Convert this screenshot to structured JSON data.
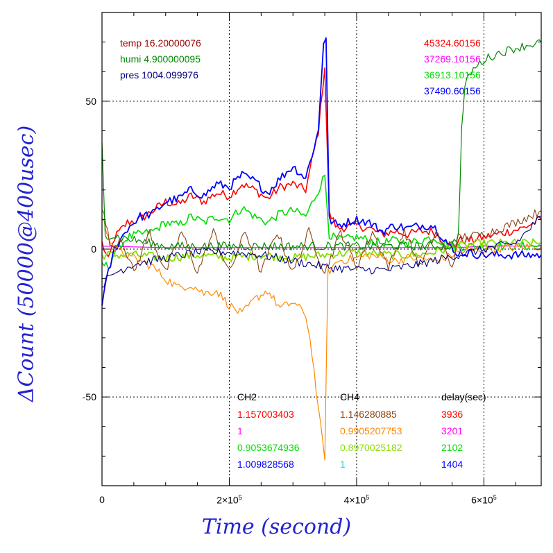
{
  "chart_data": {
    "type": "line",
    "xlabel": "Time (second)",
    "ylabel": "ΔCount (50000@400usec)",
    "xlim": [
      0,
      690000
    ],
    "ylim": [
      -80,
      80
    ],
    "x_ticks": [
      {
        "value": 0,
        "label": "0"
      },
      {
        "value": 200000,
        "mantissa": "2×10",
        "exponent": "5"
      },
      {
        "value": 400000,
        "mantissa": "4×10",
        "exponent": "5"
      },
      {
        "value": 600000,
        "mantissa": "6×10",
        "exponent": "5"
      }
    ],
    "y_ticks": [
      {
        "value": 50,
        "label": "50"
      },
      {
        "value": 0,
        "label": "0"
      },
      {
        "value": -50,
        "label": "-50"
      }
    ],
    "grid": true,
    "env_labels": [
      {
        "text": "temp 16.20000076",
        "color": "#990000"
      },
      {
        "text": "humi 4.900000095",
        "color": "#008800"
      },
      {
        "text": "pres 1004.099976",
        "color": "#000080"
      }
    ],
    "top_right_labels": [
      {
        "text": "45324.60156",
        "color": "#ff0000"
      },
      {
        "text": "37269.10156",
        "color": "#ff00ff"
      },
      {
        "text": "36913.10156",
        "color": "#00dd00"
      },
      {
        "text": "37490.60156",
        "color": "#0000ff"
      }
    ],
    "table": {
      "headers": [
        "CH2",
        "CH4",
        "delay(sec)"
      ],
      "rows": [
        {
          "ch2": "1.157003403",
          "ch4": "1.146280885",
          "delay": "3936",
          "c1": "#ff0000",
          "c2": "#8b4513",
          "c3": "#ff0000"
        },
        {
          "ch2": "1",
          "ch4": "0.9905207753",
          "delay": "3201",
          "c1": "#ff00ff",
          "c2": "#ff8800",
          "c3": "#ff00ff"
        },
        {
          "ch2": "0.9053674936",
          "ch4": "0.8970025182",
          "delay": "2102",
          "c1": "#00dd00",
          "c2": "#88dd00",
          "c3": "#00dd00"
        },
        {
          "ch2": "1.009828568",
          "ch4": "1",
          "delay": "1404",
          "c1": "#0000ff",
          "c2": "#00dddd",
          "c3": "#0000ff"
        }
      ]
    },
    "series": [
      {
        "color": "#ff0000",
        "width": 1.6,
        "points": [
          [
            0,
            2
          ],
          [
            10000,
            -4
          ],
          [
            20000,
            4
          ],
          [
            40000,
            9
          ],
          [
            60000,
            10
          ],
          [
            80000,
            13
          ],
          [
            100000,
            16
          ],
          [
            120000,
            15
          ],
          [
            140000,
            18
          ],
          [
            160000,
            16
          ],
          [
            180000,
            19
          ],
          [
            200000,
            18
          ],
          [
            220000,
            22
          ],
          [
            240000,
            20
          ],
          [
            260000,
            17
          ],
          [
            280000,
            21
          ],
          [
            300000,
            22
          ],
          [
            320000,
            20
          ],
          [
            340000,
            40
          ],
          [
            350000,
            62
          ],
          [
            357000,
            12
          ],
          [
            370000,
            7
          ],
          [
            400000,
            8
          ],
          [
            420000,
            7
          ],
          [
            440000,
            5
          ],
          [
            460000,
            6
          ],
          [
            480000,
            5
          ],
          [
            500000,
            6
          ],
          [
            520000,
            6
          ],
          [
            540000,
            2
          ],
          [
            555000,
            1
          ],
          [
            560000,
            3
          ],
          [
            580000,
            3
          ],
          [
            600000,
            4
          ],
          [
            620000,
            5
          ],
          [
            640000,
            6
          ],
          [
            660000,
            7
          ],
          [
            690000,
            10
          ]
        ]
      },
      {
        "color": "#ff00ff",
        "width": 1.2,
        "points": [
          [
            0,
            1
          ],
          [
            100000,
            0.5
          ],
          [
            200000,
            0.5
          ],
          [
            300000,
            0.5
          ],
          [
            400000,
            0.5
          ],
          [
            500000,
            0.5
          ],
          [
            560000,
            0.5
          ],
          [
            600000,
            1
          ],
          [
            690000,
            1
          ]
        ]
      },
      {
        "color": "#00dd00",
        "width": 1.6,
        "points": [
          [
            0,
            -5
          ],
          [
            10000,
            -6
          ],
          [
            20000,
            -1
          ],
          [
            40000,
            4
          ],
          [
            60000,
            5
          ],
          [
            80000,
            6
          ],
          [
            100000,
            9
          ],
          [
            120000,
            8
          ],
          [
            140000,
            11
          ],
          [
            160000,
            9
          ],
          [
            180000,
            11
          ],
          [
            200000,
            10
          ],
          [
            220000,
            14
          ],
          [
            240000,
            11
          ],
          [
            260000,
            9
          ],
          [
            280000,
            12
          ],
          [
            300000,
            13
          ],
          [
            320000,
            11
          ],
          [
            340000,
            20
          ],
          [
            350000,
            25
          ],
          [
            357000,
            5
          ],
          [
            370000,
            3
          ],
          [
            400000,
            4
          ],
          [
            420000,
            3
          ],
          [
            440000,
            2
          ],
          [
            460000,
            3
          ],
          [
            480000,
            2
          ],
          [
            500000,
            3
          ],
          [
            520000,
            4
          ],
          [
            540000,
            2
          ],
          [
            560000,
            1
          ],
          [
            600000,
            1
          ],
          [
            690000,
            1
          ]
        ]
      },
      {
        "color": "#88dd00",
        "width": 1.8,
        "points": [
          [
            0,
            -2
          ],
          [
            20000,
            -2
          ],
          [
            50000,
            -2
          ],
          [
            100000,
            -3
          ],
          [
            150000,
            -2
          ],
          [
            200000,
            -3
          ],
          [
            250000,
            -2
          ],
          [
            300000,
            -3
          ],
          [
            350000,
            -2
          ],
          [
            400000,
            -1
          ],
          [
            450000,
            -2
          ],
          [
            500000,
            -2
          ],
          [
            560000,
            1
          ],
          [
            600000,
            2
          ],
          [
            690000,
            2
          ]
        ]
      },
      {
        "color": "#0000ff",
        "width": 1.8,
        "points": [
          [
            0,
            -18
          ],
          [
            10000,
            -8
          ],
          [
            20000,
            0
          ],
          [
            40000,
            7
          ],
          [
            60000,
            11
          ],
          [
            80000,
            12
          ],
          [
            100000,
            16
          ],
          [
            120000,
            17
          ],
          [
            140000,
            20
          ],
          [
            160000,
            18
          ],
          [
            180000,
            22
          ],
          [
            200000,
            21
          ],
          [
            220000,
            25
          ],
          [
            240000,
            23
          ],
          [
            260000,
            19
          ],
          [
            280000,
            24
          ],
          [
            300000,
            28
          ],
          [
            320000,
            24
          ],
          [
            340000,
            40
          ],
          [
            348000,
            70
          ],
          [
            352000,
            72
          ],
          [
            357000,
            10
          ],
          [
            370000,
            8
          ],
          [
            400000,
            10
          ],
          [
            420000,
            9
          ],
          [
            440000,
            6
          ],
          [
            460000,
            8
          ],
          [
            480000,
            7
          ],
          [
            500000,
            8
          ],
          [
            520000,
            8
          ],
          [
            540000,
            3
          ],
          [
            555000,
            -2
          ],
          [
            560000,
            -1
          ],
          [
            600000,
            -2
          ],
          [
            650000,
            -2
          ],
          [
            690000,
            -2
          ]
        ]
      },
      {
        "color": "#ff8800",
        "width": 1.2,
        "points": [
          [
            0,
            10
          ],
          [
            20000,
            0
          ],
          [
            50000,
            -3
          ],
          [
            80000,
            -6
          ],
          [
            100000,
            -10
          ],
          [
            120000,
            -13
          ],
          [
            140000,
            -12
          ],
          [
            160000,
            -15
          ],
          [
            180000,
            -14
          ],
          [
            200000,
            -19
          ],
          [
            220000,
            -22
          ],
          [
            240000,
            -17
          ],
          [
            260000,
            -14
          ],
          [
            280000,
            -20
          ],
          [
            300000,
            -18
          ],
          [
            320000,
            -22
          ],
          [
            330000,
            -35
          ],
          [
            340000,
            -55
          ],
          [
            350000,
            -70
          ],
          [
            355000,
            -8
          ],
          [
            370000,
            -4
          ],
          [
            400000,
            -3
          ],
          [
            420000,
            -2
          ],
          [
            440000,
            -3
          ],
          [
            460000,
            -4
          ],
          [
            480000,
            -3
          ],
          [
            500000,
            -3
          ],
          [
            520000,
            -4
          ],
          [
            540000,
            -3
          ],
          [
            560000,
            -1
          ],
          [
            600000,
            0
          ],
          [
            690000,
            1
          ]
        ]
      },
      {
        "color": "#8b4513",
        "width": 1.1,
        "points": [
          [
            0,
            14
          ],
          [
            15000,
            0
          ],
          [
            30000,
            4
          ],
          [
            50000,
            -8
          ],
          [
            75000,
            6
          ],
          [
            100000,
            -8
          ],
          [
            125000,
            6
          ],
          [
            150000,
            -8
          ],
          [
            175000,
            6
          ],
          [
            200000,
            -8
          ],
          [
            225000,
            6
          ],
          [
            250000,
            -8
          ],
          [
            275000,
            6
          ],
          [
            300000,
            -8
          ],
          [
            325000,
            6
          ],
          [
            350000,
            -8
          ],
          [
            375000,
            6
          ],
          [
            400000,
            -6
          ],
          [
            425000,
            6
          ],
          [
            450000,
            -6
          ],
          [
            475000,
            6
          ],
          [
            500000,
            -6
          ],
          [
            525000,
            6
          ],
          [
            550000,
            -6
          ],
          [
            560000,
            4
          ],
          [
            600000,
            5
          ],
          [
            650000,
            9
          ],
          [
            690000,
            13
          ]
        ]
      },
      {
        "color": "#000080",
        "width": 1.1,
        "points": [
          [
            0,
            -12
          ],
          [
            20000,
            -8
          ],
          [
            50000,
            -5
          ],
          [
            100000,
            -3
          ],
          [
            150000,
            -1
          ],
          [
            200000,
            -1
          ],
          [
            250000,
            -2
          ],
          [
            300000,
            -4
          ],
          [
            350000,
            -6
          ],
          [
            400000,
            -7
          ],
          [
            450000,
            -7
          ],
          [
            500000,
            -5
          ],
          [
            540000,
            -3
          ],
          [
            560000,
            -2
          ],
          [
            600000,
            0
          ],
          [
            650000,
            2
          ],
          [
            690000,
            11
          ]
        ]
      },
      {
        "color": "#008800",
        "width": 1.2,
        "points": [
          [
            0,
            35
          ],
          [
            5000,
            5
          ],
          [
            100000,
            1
          ],
          [
            200000,
            1
          ],
          [
            300000,
            1
          ],
          [
            400000,
            1
          ],
          [
            500000,
            1
          ],
          [
            550000,
            1
          ],
          [
            560000,
            5
          ],
          [
            565000,
            40
          ],
          [
            570000,
            55
          ],
          [
            580000,
            60
          ],
          [
            600000,
            64
          ],
          [
            620000,
            66
          ],
          [
            650000,
            68
          ],
          [
            690000,
            70
          ]
        ]
      }
    ]
  }
}
